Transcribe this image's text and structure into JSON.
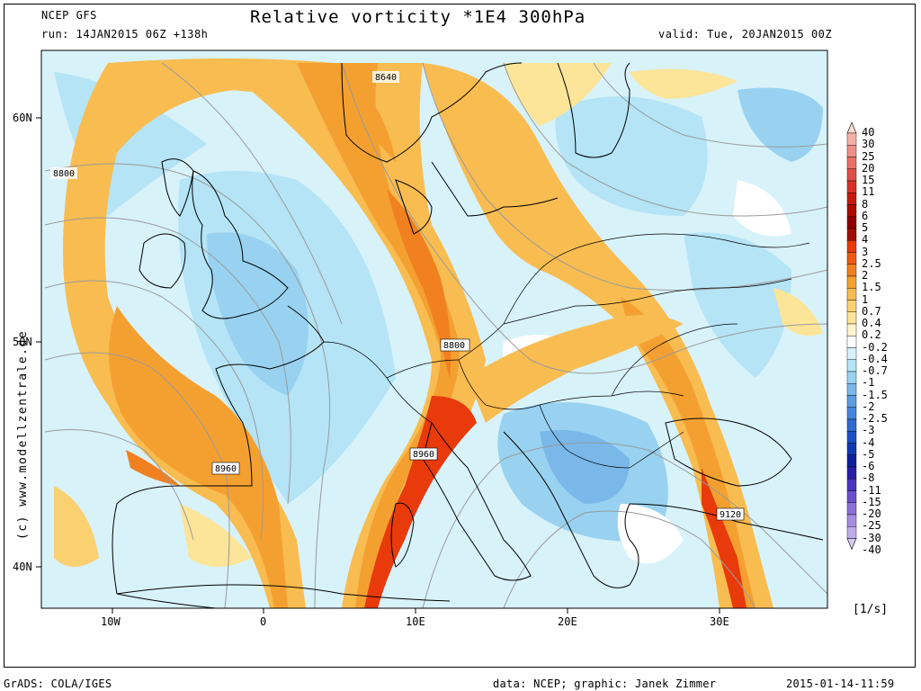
{
  "header": {
    "model": "NCEP GFS",
    "run": "run: 14JAN2015 06Z +138h",
    "title": "Relative vorticity *1E4 300hPa",
    "valid": "valid: Tue, 20JAN2015 00Z"
  },
  "map": {
    "lat_labels": [
      "60N",
      "50N",
      "40N"
    ],
    "lon_labels": [
      "10W",
      "0",
      "10E",
      "20E",
      "30E"
    ],
    "contour_labels": [
      "8640",
      "8800",
      "8800",
      "8960",
      "8960",
      "9120"
    ],
    "watermark": "(c) www.modellzentrale.de"
  },
  "colorbar": {
    "unit": "[1/s]",
    "levels": [
      "40",
      "30",
      "25",
      "20",
      "15",
      "11",
      "8",
      "6",
      "5",
      "4",
      "3",
      "2.5",
      "2",
      "1.5",
      "1",
      "0.7",
      "0.4",
      "0.2",
      "-0.2",
      "-0.4",
      "-0.7",
      "-1",
      "-1.5",
      "-2",
      "-2.5",
      "-3",
      "-4",
      "-5",
      "-6",
      "-8",
      "-11",
      "-15",
      "-20",
      "-25",
      "-30",
      "-40"
    ],
    "colors": [
      "#fbd8d4",
      "#f4b0a8",
      "#ee9088",
      "#e87068",
      "#e05048",
      "#d83028",
      "#c81a10",
      "#b00a00",
      "#900000",
      "#a01008",
      "#e83a0a",
      "#f05a10",
      "#f08020",
      "#f4a030",
      "#f8bc50",
      "#fad070",
      "#fce498",
      "#fef4cc",
      "#ffffff",
      "#d8f2fa",
      "#b4e4f6",
      "#98d2f0",
      "#7ab8ea",
      "#5c9ce2",
      "#4484da",
      "#2e6ad0",
      "#1c50c4",
      "#1038b0",
      "#10209a",
      "#2a1ea8",
      "#4a34c0",
      "#6a50cc",
      "#8a70d8",
      "#a48ee0",
      "#bcacea",
      "#d4ccf2"
    ]
  },
  "footer": {
    "left": "GrADS: COLA/IGES",
    "center": "data: NCEP; graphic: Janek Zimmer",
    "right": "2015-01-14-11:59"
  }
}
